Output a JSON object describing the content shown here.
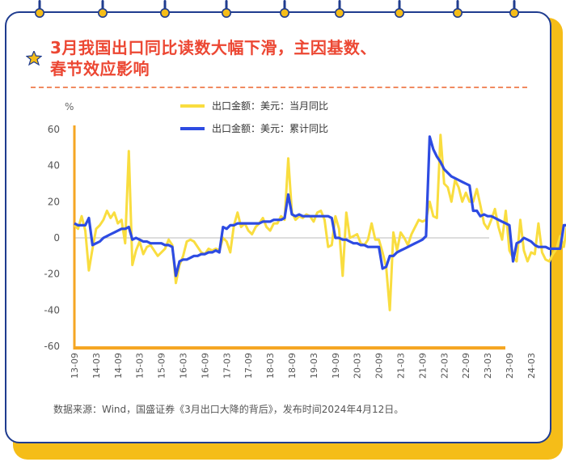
{
  "title_line1": "3月我国出口同比读数大幅下滑，主因基数、",
  "title_line2": "春节效应影响",
  "source": "数据来源：Wind，国盛证券《3月出口大降的背后》，发布时间2024年4月12日。",
  "colors": {
    "title": "#ec4733",
    "series_monthly": "#f9dd3f",
    "series_cumulative": "#2d4be2",
    "axis": "#f5a623",
    "border": "#1f3c8f",
    "shadow": "#f5bd18"
  },
  "chart_data": {
    "type": "line",
    "ylabel": "%",
    "ylim": [
      -60,
      60
    ],
    "yticks": [
      "60",
      "40",
      "20",
      "0",
      "-20",
      "-40",
      "-60"
    ],
    "xticks": [
      "13-09",
      "14-03",
      "14-09",
      "15-03",
      "15-09",
      "16-03",
      "16-09",
      "17-03",
      "17-09",
      "18-03",
      "18-09",
      "19-03",
      "19-09",
      "20-03",
      "20-09",
      "21-03",
      "21-09",
      "22-03",
      "22-09",
      "23-03",
      "23-09",
      "24-03"
    ],
    "x_start": "2013-09",
    "series": [
      {
        "name": "出口金额：美元：当月同比",
        "color": "#f9dd3f",
        "values": [
          7,
          5,
          12,
          4,
          -18,
          -6,
          5,
          7,
          10,
          15,
          11,
          14,
          8,
          10,
          -3,
          48,
          -15,
          -7,
          -2,
          -9,
          -5,
          -4,
          -7,
          -10,
          -8,
          -6,
          -1,
          -4,
          -25,
          -15,
          -10,
          -2,
          -1,
          -2,
          -5,
          -8,
          -9,
          -6,
          -7,
          -6,
          -7,
          0,
          -2,
          -8,
          7,
          14,
          6,
          8,
          4,
          2,
          6,
          8,
          11,
          6,
          4,
          8,
          8,
          12,
          10,
          44,
          14,
          10,
          12,
          11,
          13,
          12,
          9,
          14,
          15,
          10,
          -5,
          -4,
          12,
          5,
          -21,
          14,
          0,
          1,
          2,
          -3,
          -4,
          -1,
          8,
          -1,
          -1,
          -8,
          -16,
          -40,
          3,
          -7,
          3,
          0,
          -4,
          2,
          6,
          10,
          9,
          10,
          20,
          12,
          11,
          57,
          30,
          28,
          20,
          32,
          28,
          20,
          25,
          20,
          20,
          27,
          18,
          8,
          5,
          10,
          16,
          6,
          -1,
          15,
          -7,
          -11,
          -13,
          10,
          -7,
          -13,
          -8,
          -9,
          8,
          -8,
          -12,
          -13,
          -9,
          -6,
          1,
          -5,
          8,
          -5,
          -8
        ]
      },
      {
        "name": "出口金额：美元：累计同比",
        "color": "#2d4be2",
        "values": [
          8,
          7,
          7,
          7,
          11,
          -4,
          -3,
          -2,
          0,
          1,
          2,
          3,
          4,
          5,
          5,
          6,
          -1,
          0,
          -1,
          -2,
          -2,
          -3,
          -3,
          -3,
          -3,
          -4,
          -4,
          -5,
          -21,
          -13,
          -12,
          -12,
          -11,
          -10,
          -10,
          -9,
          -9,
          -8,
          -8,
          -7,
          -8,
          6,
          5,
          7,
          7,
          8,
          8,
          8,
          8,
          8,
          8,
          8,
          9,
          9,
          9,
          10,
          10,
          10,
          11,
          24,
          13,
          12,
          13,
          12,
          12,
          12,
          12,
          12,
          12,
          12,
          12,
          11,
          0,
          0,
          -1,
          -1,
          -2,
          -3,
          -3,
          -4,
          -4,
          -5,
          -5,
          -5,
          -5,
          -17,
          -16,
          -10,
          -10,
          -8,
          -7,
          -6,
          -5,
          -4,
          -3,
          -2,
          -1,
          1,
          56,
          49,
          45,
          42,
          38,
          36,
          34,
          33,
          32,
          31,
          30,
          29,
          15,
          15,
          12,
          13,
          12,
          12,
          11,
          10,
          9,
          8,
          7,
          -13,
          -3,
          -2,
          0,
          -1,
          -2,
          -4,
          -5,
          -5,
          -5,
          -6,
          -6,
          -6,
          -6,
          7,
          7,
          1
        ]
      }
    ]
  }
}
